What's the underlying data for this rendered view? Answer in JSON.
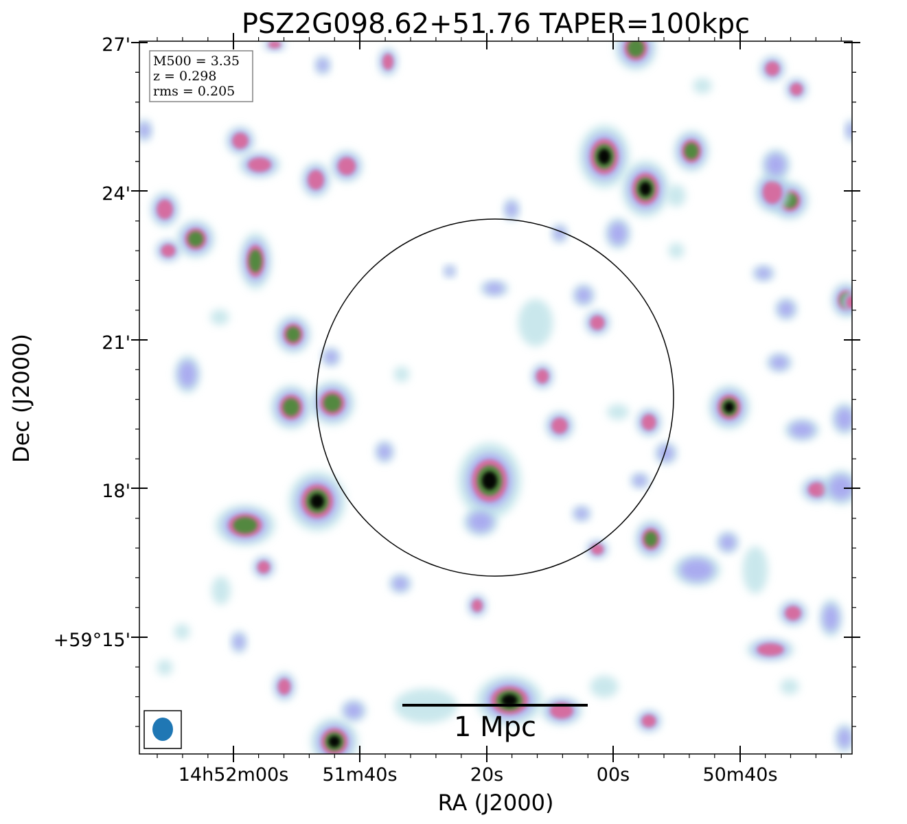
{
  "title": "PSZ2G098.62+51.76 TAPER=100kpc",
  "axes": {
    "xlabel": "RA (J2000)",
    "ylabel": "Dec (J2000)",
    "x_ticks": [
      "14h52m00s",
      "51m40s",
      "20s",
      "00s",
      "50m40s"
    ],
    "y_ticks": [
      "27'",
      "24'",
      "21'",
      "18'",
      "+59°15'"
    ]
  },
  "info_box": {
    "line1": "M500 = 3.35",
    "line2": "z = 0.298",
    "line3": "rms = 0.205"
  },
  "scale_bar": {
    "label": "1 Mpc"
  },
  "colors": {
    "faint": "#b8e0e6",
    "low": "#a8a8f0",
    "mid": "#d86a9c",
    "high": "#4e8a3a",
    "peak": "#000000",
    "beam": "#1f77b4"
  }
}
